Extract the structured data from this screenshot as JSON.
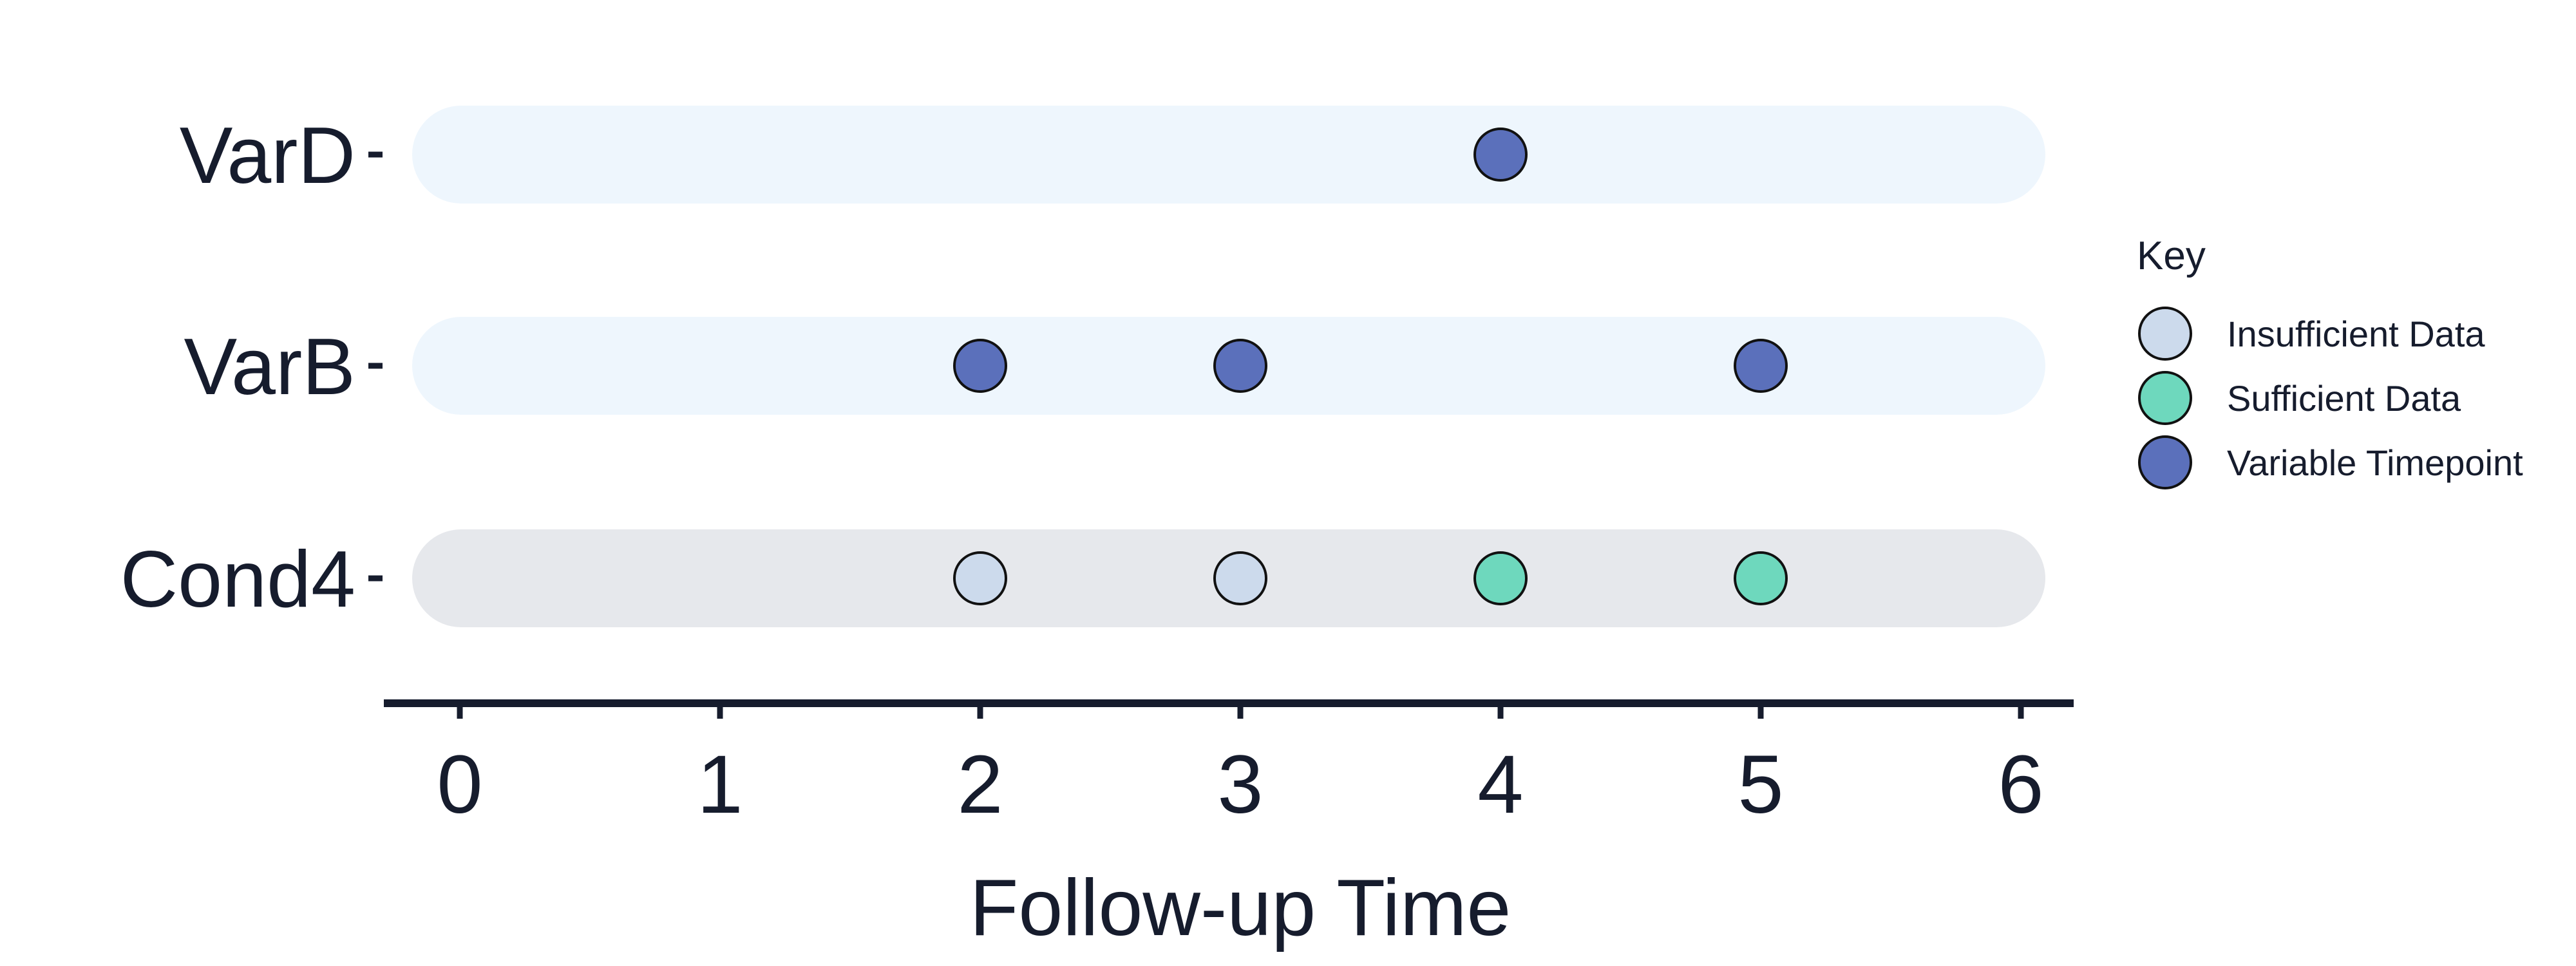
{
  "chart_data": {
    "type": "scatter",
    "title": "",
    "xlabel": "Follow-up Time",
    "ylabel": "",
    "xlim": [
      -0.3,
      6.3
    ],
    "xticks": [
      0,
      1,
      2,
      3,
      4,
      5,
      6
    ],
    "rows": [
      {
        "label": "VarD",
        "band_color": "#eef6fd"
      },
      {
        "label": "VarB",
        "band_color": "#eef6fd"
      },
      {
        "label": "Cond4",
        "band_color": "#e6e8ec"
      }
    ],
    "categories": [
      {
        "name": "Insufficient Data",
        "color": "#ccdaec"
      },
      {
        "name": "Sufficient Data",
        "color": "#6ed8bd"
      },
      {
        "name": "Variable Timepoint",
        "color": "#5b70bb"
      }
    ],
    "series": [
      {
        "name": "Insufficient Data",
        "points": [
          {
            "x": 2,
            "row": "Cond4"
          },
          {
            "x": 3,
            "row": "Cond4"
          }
        ]
      },
      {
        "name": "Sufficient Data",
        "points": [
          {
            "x": 4,
            "row": "Cond4"
          },
          {
            "x": 5,
            "row": "Cond4"
          }
        ]
      },
      {
        "name": "Variable Timepoint",
        "points": [
          {
            "x": 4,
            "row": "VarD"
          },
          {
            "x": 2,
            "row": "VarB"
          },
          {
            "x": 3,
            "row": "VarB"
          },
          {
            "x": 5,
            "row": "VarB"
          }
        ]
      }
    ],
    "legend": {
      "title": "Key",
      "position": "right"
    },
    "grid": false,
    "axis_color": "#161c2d",
    "marker_edge_color": "#111111"
  }
}
